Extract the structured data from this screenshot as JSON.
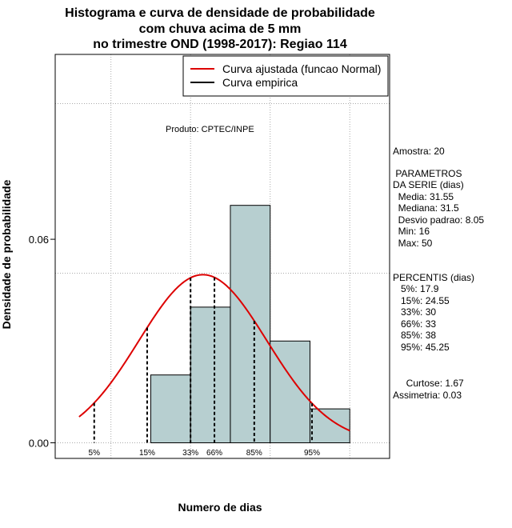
{
  "chart_data": {
    "type": "bar",
    "title_lines": [
      "Histograma e curva de densidade de probabilidade",
      "com chuva acima de 5 mm",
      "no trimestre OND (1998-2017): Regiao 114"
    ],
    "xlabel": "Numero de dias",
    "ylabel": "Densidade de probabilidade",
    "produto": "Produto: CPTEC/INPE",
    "xlim": [
      13,
      55
    ],
    "ylim": [
      -0.0046,
      0.1145
    ],
    "y_ticks": [
      {
        "value": 0.0,
        "label": "0.00"
      },
      {
        "value": 0.06,
        "label": "0.06"
      }
    ],
    "grid": true,
    "bins": [
      {
        "x0": 25,
        "x1": 30,
        "density": 0.02
      },
      {
        "x0": 30,
        "x1": 35,
        "density": 0.04
      },
      {
        "x0": 35,
        "x1": 40,
        "density": 0.07
      },
      {
        "x0": 40,
        "x1": 45,
        "density": 0.03
      },
      {
        "x0": 45,
        "x1": 50,
        "density": 0.01
      }
    ],
    "normal_curve": {
      "mean": 31.55,
      "sd": 8.05,
      "x_range": [
        16,
        50
      ]
    },
    "percentile_lines": [
      {
        "label": "5%",
        "x": 17.9
      },
      {
        "label": "15%",
        "x": 24.55
      },
      {
        "label": "33%",
        "x": 30
      },
      {
        "label": "66%",
        "x": 33
      },
      {
        "label": "85%",
        "x": 38
      },
      {
        "label": "95%",
        "x": 45.25
      }
    ],
    "legend": {
      "position": "top-right",
      "entries": [
        {
          "label": "Curva ajustada (funcao Normal)",
          "color": "#dd0000"
        },
        {
          "label": "Curva empirica",
          "color": "#000000"
        }
      ]
    },
    "colors": {
      "bar_fill": "#b7cfd0",
      "curve": "#dd0000",
      "grid": "#aaaaaa"
    }
  },
  "stats": {
    "amostra": "Amostra: 20",
    "parametros_title": " PARAMETROS",
    "da_serie": "DA SERIE (dias)",
    "media": "  Media: 31.55",
    "mediana": "  Mediana: 31.5",
    "desvio": "  Desvio padrao: 8.05",
    "min": "  Min: 16",
    "max": "  Max: 50",
    "percentis_title": "PERCENTIS (dias)",
    "p5": "   5%: 17.9",
    "p15": "   15%: 24.55",
    "p33": "   33%: 30",
    "p66": "   66%: 33",
    "p85": "   85%: 38",
    "p95": "   95%: 45.25",
    "curtose": "     Curtose: 1.67",
    "assimetria": "Assimetria: 0.03"
  }
}
